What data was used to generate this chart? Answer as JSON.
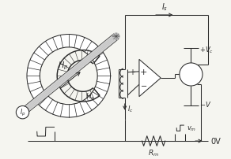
{
  "bg_color": "#f5f5f0",
  "line_color": "#2a2a2a",
  "fig_width": 2.92,
  "fig_height": 2.03,
  "dpi": 100,
  "labels": {
    "Is": "$I_s$",
    "Hp": "$H_p$",
    "Hs": "$H_s$",
    "Ip": "$I_p$",
    "Ic": "$I_c$",
    "Vplus": "$+V_c$",
    "Vminus": "$-V$",
    "Rm": "$R_m$",
    "Vm": "$v_m$",
    "OV": "0V"
  }
}
